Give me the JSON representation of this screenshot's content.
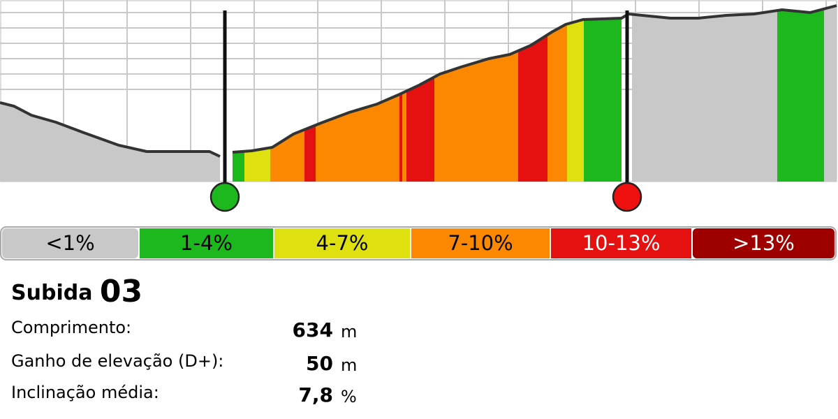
{
  "legend": [
    {
      "label": "<1%",
      "color": "#c8c8c8",
      "text_color": "#000000"
    },
    {
      "label": "1-4%",
      "color": "#1db81d",
      "text_color": "#000000"
    },
    {
      "label": "4-7%",
      "color": "#dfe010",
      "text_color": "#000000"
    },
    {
      "label": "7-10%",
      "color": "#fb8800",
      "text_color": "#000000"
    },
    {
      "label": "10-13%",
      "color": "#e51111",
      "text_color": "#ffffff"
    },
    {
      "label": ">13%",
      "color": "#9e0000",
      "text_color": "#ffffff"
    }
  ],
  "title": {
    "word": "Subida",
    "number": "03"
  },
  "stats": [
    {
      "label": "Comprimento:",
      "value": 634,
      "unit": "m"
    },
    {
      "label": "Ganho de elevação (D+):",
      "value": 50,
      "unit": "m"
    },
    {
      "label": "Inclinação média:",
      "value": "7,8",
      "unit": "%"
    }
  ]
}
